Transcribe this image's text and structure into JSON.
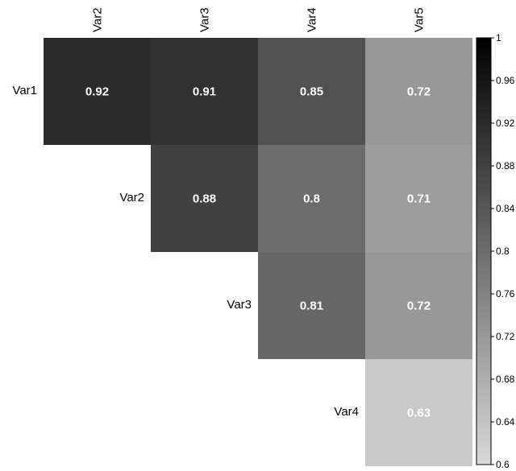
{
  "chart_data": {
    "type": "heatmap",
    "title": "",
    "columns": [
      "Var2",
      "Var3",
      "Var4",
      "Var5"
    ],
    "rows": [
      "Var1",
      "Var2",
      "Var3",
      "Var4"
    ],
    "cells": [
      {
        "row": "Var1",
        "col": "Var2",
        "value": 0.92,
        "label": "0.92"
      },
      {
        "row": "Var1",
        "col": "Var3",
        "value": 0.91,
        "label": "0.91"
      },
      {
        "row": "Var1",
        "col": "Var4",
        "value": 0.85,
        "label": "0.85"
      },
      {
        "row": "Var1",
        "col": "Var5",
        "value": 0.72,
        "label": "0.72"
      },
      {
        "row": "Var2",
        "col": "Var3",
        "value": 0.88,
        "label": "0.88"
      },
      {
        "row": "Var2",
        "col": "Var4",
        "value": 0.8,
        "label": "0.8"
      },
      {
        "row": "Var2",
        "col": "Var5",
        "value": 0.71,
        "label": "0.71"
      },
      {
        "row": "Var3",
        "col": "Var4",
        "value": 0.81,
        "label": "0.81"
      },
      {
        "row": "Var3",
        "col": "Var5",
        "value": 0.72,
        "label": "0.72"
      },
      {
        "row": "Var4",
        "col": "Var5",
        "value": 0.63,
        "label": "0.63"
      }
    ],
    "colorbar": {
      "min": 0.6,
      "max": 1,
      "ticks": [
        "0.6",
        "0.64",
        "0.68",
        "0.72",
        "0.76",
        "0.8",
        "0.84",
        "0.88",
        "0.92",
        "0.96",
        "1"
      ],
      "color_low": "#d9d9d9",
      "color_high": "#000000"
    },
    "layout": "upper-triangle"
  }
}
